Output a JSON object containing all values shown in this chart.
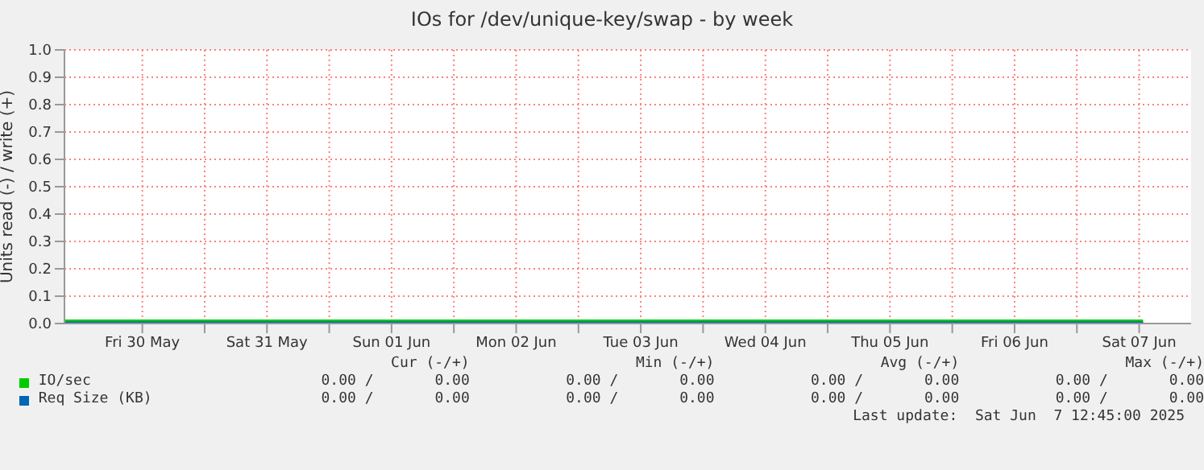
{
  "chart_data": {
    "type": "line",
    "title": "IOs for /dev/unique-key/swap - by week",
    "ylabel": "Units read (-) / write (+)",
    "xlim": [
      "2025-05-29T21:00",
      "2025-06-07T22:00"
    ],
    "xticks": [
      {
        "value": "2025-05-30T12:00",
        "label": "Fri 30 May"
      },
      {
        "value": "2025-05-31T00:00",
        "label": null
      },
      {
        "value": "2025-05-31T12:00",
        "label": "Sat 31 May"
      },
      {
        "value": "2025-06-01T00:00",
        "label": null
      },
      {
        "value": "2025-06-01T12:00",
        "label": "Sun 01 Jun"
      },
      {
        "value": "2025-06-02T00:00",
        "label": null
      },
      {
        "value": "2025-06-02T12:00",
        "label": "Mon 02 Jun"
      },
      {
        "value": "2025-06-03T00:00",
        "label": null
      },
      {
        "value": "2025-06-03T12:00",
        "label": "Tue 03 Jun"
      },
      {
        "value": "2025-06-04T00:00",
        "label": null
      },
      {
        "value": "2025-06-04T12:00",
        "label": "Wed 04 Jun"
      },
      {
        "value": "2025-06-05T00:00",
        "label": null
      },
      {
        "value": "2025-06-05T12:00",
        "label": "Thu 05 Jun"
      },
      {
        "value": "2025-06-06T00:00",
        "label": null
      },
      {
        "value": "2025-06-06T12:00",
        "label": "Fri 06 Jun"
      },
      {
        "value": "2025-06-07T00:00",
        "label": null
      },
      {
        "value": "2025-06-07T12:00",
        "label": "Sat 07 Jun"
      }
    ],
    "ylim": [
      0,
      1
    ],
    "yticks": [
      {
        "value": 0,
        "label": "0.0"
      },
      {
        "value": 0.1,
        "label": "0.1"
      },
      {
        "value": 0.2,
        "label": "0.2"
      },
      {
        "value": 0.3,
        "label": "0.3"
      },
      {
        "value": 0.4,
        "label": "0.4"
      },
      {
        "value": 0.5,
        "label": "0.5"
      },
      {
        "value": 0.6,
        "label": "0.6"
      },
      {
        "value": 0.7,
        "label": "0.7"
      },
      {
        "value": 0.8,
        "label": "0.8"
      },
      {
        "value": 0.9,
        "label": "0.9"
      },
      {
        "value": 1,
        "label": "1.0"
      }
    ],
    "grid": true,
    "legend": "bottom",
    "marker": "none",
    "line_style": "solid",
    "series": [
      {
        "name": "IO/sec",
        "color": "#00cc00",
        "x": [
          "2025-05-29T21:00",
          "2025-05-31T00:00",
          "2025-06-02T00:00",
          "2025-06-04T00:00",
          "2025-06-06T00:00",
          "2025-06-07T12:45"
        ],
        "values": [
          0,
          0,
          0,
          0,
          0,
          0
        ]
      },
      {
        "name": "Req Size (KB)",
        "color": "#0066b3",
        "x": [
          "2025-05-29T21:00",
          "2025-05-31T00:00",
          "2025-06-02T00:00",
          "2025-06-04T00:00",
          "2025-06-06T00:00",
          "2025-06-07T12:45"
        ],
        "values": [
          0,
          0,
          0,
          0,
          0,
          0
        ]
      }
    ],
    "annotations": [
      "Cur (-/+)",
      "Min (-/+)",
      "Avg (-/+)",
      "Max (-/+)",
      "0.00 /       0.00",
      "0.00 /       0.00",
      "0.00 /       0.00",
      "0.00 /       0.00",
      "0.00 /       0.00",
      "0.00 /       0.00",
      "0.00 /       0.00",
      "0.00 /       0.00",
      "Last update:  Sat Jun  7 12:45:00 2025"
    ]
  }
}
